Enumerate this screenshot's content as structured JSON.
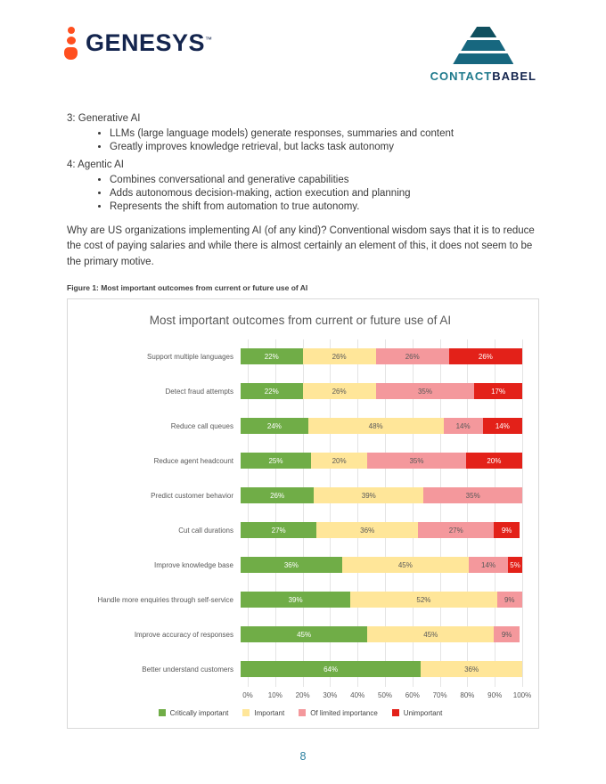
{
  "page": {
    "number": "8"
  },
  "header": {
    "genesys_logo_text": "GENESYS",
    "genesys_tm": "™",
    "contactbabel_contact": "CONTACT",
    "contactbabel_babel": "BABEL"
  },
  "body": {
    "section3_heading": "3: Generative AI",
    "section3_bullets": [
      "LLMs (large language models) generate responses, summaries and content",
      "Greatly improves knowledge retrieval, but lacks task autonomy"
    ],
    "section4_heading": "4: Agentic AI",
    "section4_bullets": [
      "Combines conversational and generative capabilities",
      "Adds autonomous decision-making, action execution and planning",
      "Represents the shift from automation to true autonomy."
    ],
    "paragraph": "Why are US organizations implementing AI (of any kind)? Conventional wisdom says that it is to reduce the cost of paying salaries and while there is almost certainly an element of this, it does not seem to be the primary motive.",
    "figure_caption": "Figure 1: Most important outcomes from current or future use of AI"
  },
  "chart_data": {
    "type": "bar",
    "orientation": "horizontal",
    "stacked": true,
    "title": "Most important outcomes from current or future use of AI",
    "categories": [
      "Support multiple languages",
      "Detect fraud attempts",
      "Reduce call queues",
      "Reduce agent headcount",
      "Predict customer behavior",
      "Cut call durations",
      "Improve knowledge base",
      "Handle more enquiries through self-service",
      "Improve accuracy of responses",
      "Better understand customers"
    ],
    "series": [
      {
        "name": "Critically important",
        "color": "#70ad47",
        "label_color": "#ffffff",
        "values": [
          22,
          22,
          24,
          25,
          26,
          27,
          36,
          39,
          45,
          64
        ]
      },
      {
        "name": "Important",
        "color": "#ffe699",
        "label_color": "#595959",
        "values": [
          26,
          26,
          48,
          20,
          39,
          36,
          45,
          52,
          45,
          36
        ]
      },
      {
        "name": "Of limited importance",
        "color": "#f4989c",
        "label_color": "#595959",
        "values": [
          26,
          35,
          14,
          35,
          35,
          27,
          14,
          9,
          9,
          0
        ]
      },
      {
        "name": "Unimportant",
        "color": "#e32119",
        "label_color": "#ffffff",
        "values": [
          26,
          17,
          14,
          20,
          0,
          9,
          5,
          0,
          0,
          0
        ]
      }
    ],
    "x_ticks": [
      "0%",
      "10%",
      "20%",
      "30%",
      "40%",
      "50%",
      "60%",
      "70%",
      "80%",
      "90%",
      "100%"
    ],
    "xlim": [
      0,
      100
    ],
    "grid": true,
    "legend_position": "bottom"
  }
}
